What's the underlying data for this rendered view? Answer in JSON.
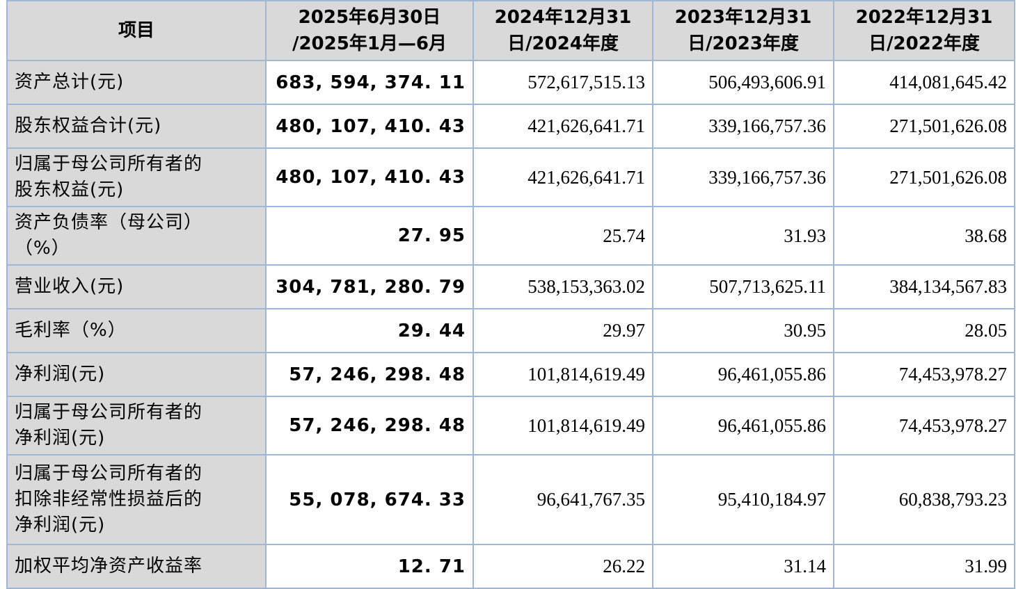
{
  "table": {
    "headers": [
      [
        "项目"
      ],
      [
        "2025年6月30日",
        "/2025年1月—6月"
      ],
      [
        "2024年12月31",
        "日/2024年度"
      ],
      [
        "2023年12月31",
        "日/2023年度"
      ],
      [
        "2022年12月31",
        "日/2022年度"
      ]
    ],
    "rows": [
      {
        "label": [
          "资产总计(元)"
        ],
        "values": [
          "683, 594, 374. 11",
          "572,617,515.13",
          "506,493,606.91",
          "414,081,645.42"
        ]
      },
      {
        "label": [
          "股东权益合计(元)"
        ],
        "values": [
          "480, 107, 410. 43",
          "421,626,641.71",
          "339,166,757.36",
          "271,501,626.08"
        ]
      },
      {
        "label": [
          "归属于母公司所有者的",
          "股东权益(元)"
        ],
        "values": [
          "480, 107, 410. 43",
          "421,626,641.71",
          "339,166,757.36",
          "271,501,626.08"
        ]
      },
      {
        "label": [
          "资产负债率（母公司）",
          "（%）"
        ],
        "values": [
          "27. 95",
          "25.74",
          "31.93",
          "38.68"
        ]
      },
      {
        "label": [
          "营业收入(元)"
        ],
        "values": [
          "304, 781, 280. 79",
          "538,153,363.02",
          "507,713,625.11",
          "384,134,567.83"
        ]
      },
      {
        "label": [
          "毛利率（%）"
        ],
        "values": [
          "29. 44",
          "29.97",
          "30.95",
          "28.05"
        ]
      },
      {
        "label": [
          "净利润(元)"
        ],
        "values": [
          "57, 246, 298. 48",
          "101,814,619.49",
          "96,461,055.86",
          "74,453,978.27"
        ]
      },
      {
        "label": [
          "归属于母公司所有者的",
          "净利润(元)"
        ],
        "values": [
          "57, 246, 298. 48",
          "101,814,619.49",
          "96,461,055.86",
          "74,453,978.27"
        ]
      },
      {
        "label": [
          "归属于母公司所有者的",
          "扣除非经常性损益后的",
          "净利润(元)"
        ],
        "values": [
          "55, 078, 674. 33",
          "96,641,767.35",
          "95,410,184.97",
          "60,838,793.23"
        ]
      },
      {
        "label": [
          "加权平均净资产收益率"
        ],
        "values": [
          "12. 71",
          "26.22",
          "31.14",
          "31.99"
        ]
      }
    ]
  }
}
